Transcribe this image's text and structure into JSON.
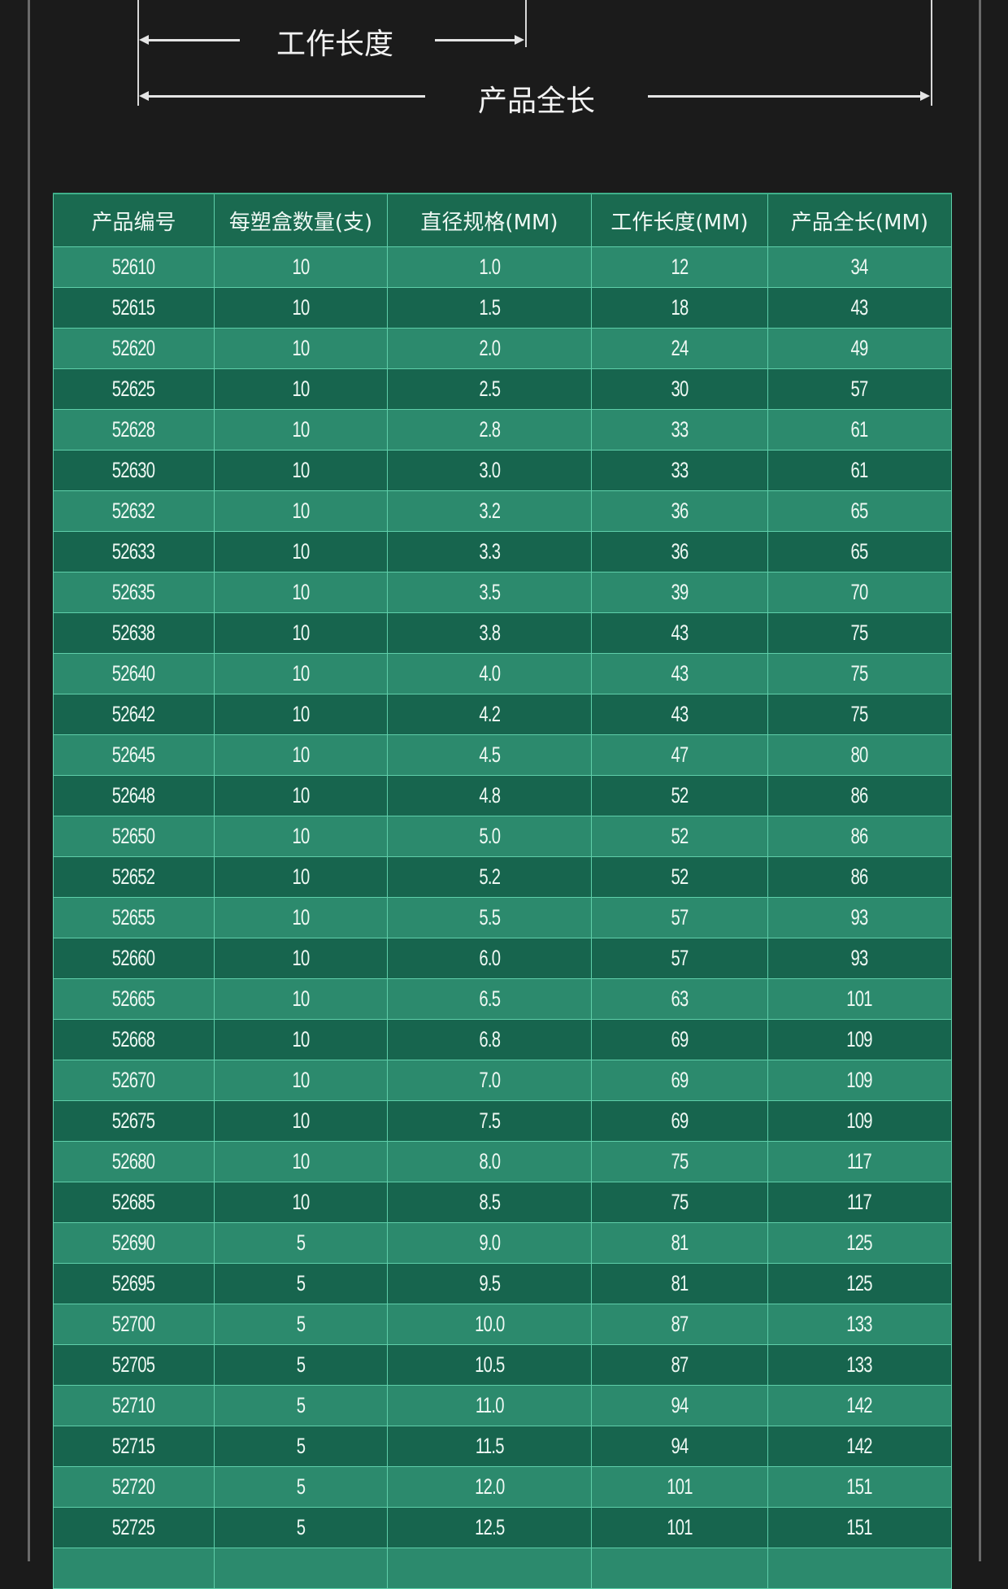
{
  "diagram": {
    "working_length_label": "工作长度",
    "total_length_label": "产品全长"
  },
  "table": {
    "headers": [
      "产品编号",
      "每塑盒数量(支)",
      "直径规格(MM)",
      "工作长度(MM)",
      "产品全长(MM)"
    ],
    "rows": [
      [
        "52610",
        "10",
        "1.0",
        "12",
        "34"
      ],
      [
        "52615",
        "10",
        "1.5",
        "18",
        "43"
      ],
      [
        "52620",
        "10",
        "2.0",
        "24",
        "49"
      ],
      [
        "52625",
        "10",
        "2.5",
        "30",
        "57"
      ],
      [
        "52628",
        "10",
        "2.8",
        "33",
        "61"
      ],
      [
        "52630",
        "10",
        "3.0",
        "33",
        "61"
      ],
      [
        "52632",
        "10",
        "3.2",
        "36",
        "65"
      ],
      [
        "52633",
        "10",
        "3.3",
        "36",
        "65"
      ],
      [
        "52635",
        "10",
        "3.5",
        "39",
        "70"
      ],
      [
        "52638",
        "10",
        "3.8",
        "43",
        "75"
      ],
      [
        "52640",
        "10",
        "4.0",
        "43",
        "75"
      ],
      [
        "52642",
        "10",
        "4.2",
        "43",
        "75"
      ],
      [
        "52645",
        "10",
        "4.5",
        "47",
        "80"
      ],
      [
        "52648",
        "10",
        "4.8",
        "52",
        "86"
      ],
      [
        "52650",
        "10",
        "5.0",
        "52",
        "86"
      ],
      [
        "52652",
        "10",
        "5.2",
        "52",
        "86"
      ],
      [
        "52655",
        "10",
        "5.5",
        "57",
        "93"
      ],
      [
        "52660",
        "10",
        "6.0",
        "57",
        "93"
      ],
      [
        "52665",
        "10",
        "6.5",
        "63",
        "101"
      ],
      [
        "52668",
        "10",
        "6.8",
        "69",
        "109"
      ],
      [
        "52670",
        "10",
        "7.0",
        "69",
        "109"
      ],
      [
        "52675",
        "10",
        "7.5",
        "69",
        "109"
      ],
      [
        "52680",
        "10",
        "8.0",
        "75",
        "117"
      ],
      [
        "52685",
        "10",
        "8.5",
        "75",
        "117"
      ],
      [
        "52690",
        "5",
        "9.0",
        "81",
        "125"
      ],
      [
        "52695",
        "5",
        "9.5",
        "81",
        "125"
      ],
      [
        "52700",
        "5",
        "10.0",
        "87",
        "133"
      ],
      [
        "52705",
        "5",
        "10.5",
        "87",
        "133"
      ],
      [
        "52710",
        "5",
        "11.0",
        "94",
        "142"
      ],
      [
        "52715",
        "5",
        "11.5",
        "94",
        "142"
      ],
      [
        "52720",
        "5",
        "12.0",
        "101",
        "151"
      ],
      [
        "52725",
        "5",
        "12.5",
        "101",
        "151"
      ]
    ]
  },
  "colors": {
    "row_light": "#2c8a6d",
    "row_dark": "#17654e",
    "header": "#1a6a50",
    "background": "#1b1b1b"
  }
}
